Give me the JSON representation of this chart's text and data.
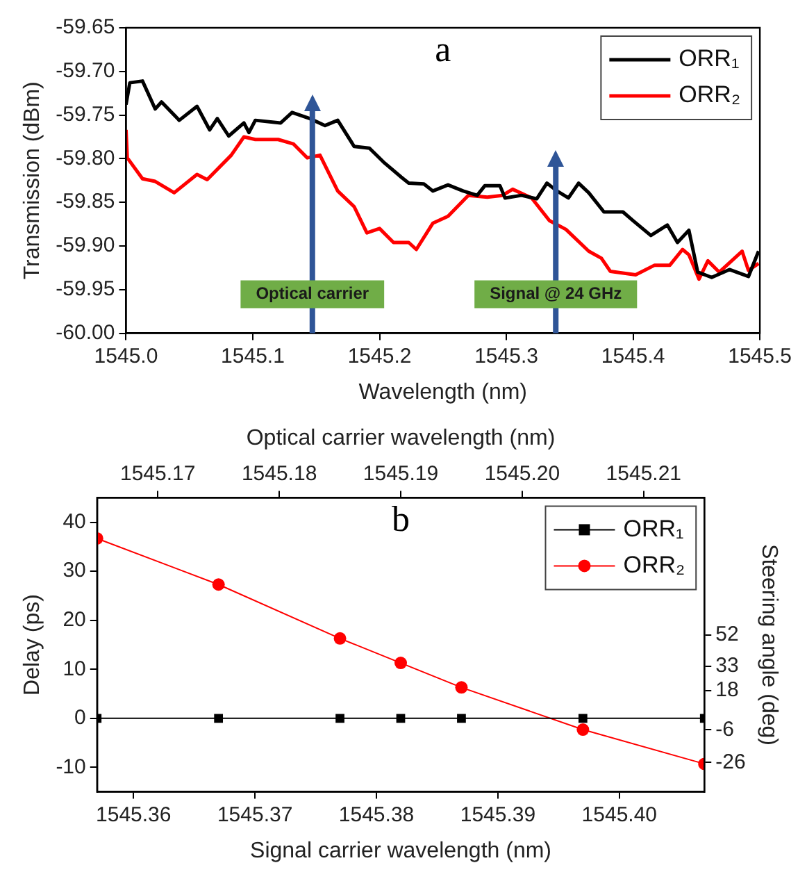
{
  "chart_data": [
    {
      "type": "line",
      "xlabel": "Wavelength (nm)",
      "ylabel": "Transmission (dBm)",
      "marker": "none",
      "legend": "top right",
      "grid": false,
      "xlim": [
        1545.0,
        1545.5
      ],
      "xticks": [
        {
          "value": 1545.0,
          "label": "1545.0"
        },
        {
          "value": 1545.1,
          "label": "1545.1"
        },
        {
          "value": 1545.2,
          "label": "1545.2"
        },
        {
          "value": 1545.3,
          "label": "1545.3"
        },
        {
          "value": 1545.4,
          "label": "1545.4"
        },
        {
          "value": 1545.5,
          "label": "1545.5"
        }
      ],
      "ylim": [
        -60.0,
        -59.65
      ],
      "yticks": [
        {
          "value": -60.0,
          "label": "-60.00"
        },
        -59.95,
        {
          "value": -59.9,
          "label": "-59.90"
        },
        -59.85,
        {
          "value": -59.8,
          "label": "-59.80"
        },
        -59.75,
        {
          "value": -59.7,
          "label": "-59.70"
        },
        -59.65
      ],
      "annotations": [
        "a"
      ],
      "ref_lines": [
        {
          "axis": "x",
          "value": 1545.147,
          "label": "Optical carrier",
          "color": "#2f5597"
        },
        {
          "axis": "x",
          "value": 1545.339,
          "label": "Signal @ 24 GHz",
          "color": "#2f5597"
        }
      ],
      "series": [
        {
          "name": "ORR₁",
          "color": "#000000",
          "x": [
            1545.0,
            1545.003,
            1545.013,
            1545.023,
            1545.028,
            1545.042,
            1545.056,
            1545.066,
            1545.072,
            1545.081,
            1545.093,
            1545.097,
            1545.102,
            1545.122,
            1545.131,
            1545.145,
            1545.157,
            1545.167,
            1545.18,
            1545.192,
            1545.204,
            1545.217,
            1545.223,
            1545.235,
            1545.242,
            1545.254,
            1545.266,
            1545.277,
            1545.283,
            1545.295,
            1545.299,
            1545.312,
            1545.324,
            1545.332,
            1545.34,
            1545.349,
            1545.357,
            1545.365,
            1545.377,
            1545.392,
            1545.4,
            1545.414,
            1545.427,
            1545.435,
            1545.444,
            1545.451,
            1545.462,
            1545.476,
            1545.491,
            1545.499
          ],
          "values": [
            -59.738,
            -59.713,
            -59.711,
            -59.743,
            -59.735,
            -59.756,
            -59.74,
            -59.767,
            -59.754,
            -59.774,
            -59.759,
            -59.77,
            -59.756,
            -59.759,
            -59.747,
            -59.754,
            -59.762,
            -59.756,
            -59.786,
            -59.788,
            -59.805,
            -59.821,
            -59.828,
            -59.829,
            -59.837,
            -59.83,
            -59.837,
            -59.842,
            -59.831,
            -59.831,
            -59.845,
            -59.842,
            -59.846,
            -59.828,
            -59.837,
            -59.845,
            -59.828,
            -59.839,
            -59.861,
            -59.861,
            -59.871,
            -59.888,
            -59.876,
            -59.896,
            -59.882,
            -59.93,
            -59.936,
            -59.927,
            -59.935,
            -59.906
          ]
        },
        {
          "name": "ORR₂",
          "color": "#ff0000",
          "x": [
            1545.0,
            1545.001,
            1545.013,
            1545.023,
            1545.038,
            1545.056,
            1545.064,
            1545.083,
            1545.093,
            1545.102,
            1545.12,
            1545.132,
            1545.143,
            1545.153,
            1545.167,
            1545.18,
            1545.19,
            1545.2,
            1545.211,
            1545.223,
            1545.229,
            1545.242,
            1545.254,
            1545.27,
            1545.285,
            1545.297,
            1545.305,
            1545.32,
            1545.334,
            1545.347,
            1545.365,
            1545.375,
            1545.382,
            1545.402,
            1545.417,
            1545.429,
            1545.439,
            1545.444,
            1545.452,
            1545.459,
            1545.468,
            1545.486,
            1545.491,
            1545.499
          ],
          "values": [
            -59.767,
            -59.799,
            -59.823,
            -59.826,
            -59.839,
            -59.818,
            -59.824,
            -59.796,
            -59.775,
            -59.778,
            -59.778,
            -59.783,
            -59.799,
            -59.796,
            -59.837,
            -59.855,
            -59.885,
            -59.88,
            -59.896,
            -59.896,
            -59.904,
            -59.874,
            -59.866,
            -59.842,
            -59.844,
            -59.842,
            -59.835,
            -59.845,
            -59.871,
            -59.881,
            -59.906,
            -59.914,
            -59.929,
            -59.933,
            -59.922,
            -59.922,
            -59.904,
            -59.91,
            -59.938,
            -59.917,
            -59.93,
            -59.906,
            -59.928,
            -59.92
          ]
        }
      ]
    },
    {
      "type": "line",
      "xlabel": "Signal carrier wavelength (nm)",
      "x2label": "Optical carrier wavelength (nm)",
      "ylabel": "Delay (ps)",
      "y2label": "Steering angle (deg)",
      "legend": "top right",
      "grid": false,
      "x": [
        1545.357,
        1545.367,
        1545.377,
        1545.382,
        1545.387,
        1545.397,
        1545.407
      ],
      "xlim": [
        1545.357,
        1545.407
      ],
      "xticks": [
        1545.36,
        1545.37,
        1545.38,
        1545.39,
        {
          "value": 1545.4,
          "label": "1545.40"
        }
      ],
      "x2lim": [
        1545.165,
        1545.215
      ],
      "x2ticks": [
        1545.17,
        1545.18,
        1545.19,
        {
          "value": 1545.2,
          "label": "1545.20"
        },
        1545.21
      ],
      "ylim": [
        -15,
        45
      ],
      "yticks": [
        -10,
        0,
        10,
        20,
        30,
        40
      ],
      "y2lim": [
        -44,
        136
      ],
      "y2ticks": [
        -26,
        -6,
        18,
        33,
        52
      ],
      "annotations": [
        "b"
      ],
      "series": [
        {
          "name": "ORR₁",
          "color": "#000000",
          "marker": "square",
          "values": [
            0,
            0,
            0,
            0,
            0,
            0,
            0
          ]
        },
        {
          "name": "ORR₂",
          "color": "#ff0000",
          "marker": "circle",
          "values": [
            36.7,
            27.3,
            16.3,
            11.3,
            6.3,
            -2.3,
            -9.3
          ]
        }
      ]
    }
  ]
}
